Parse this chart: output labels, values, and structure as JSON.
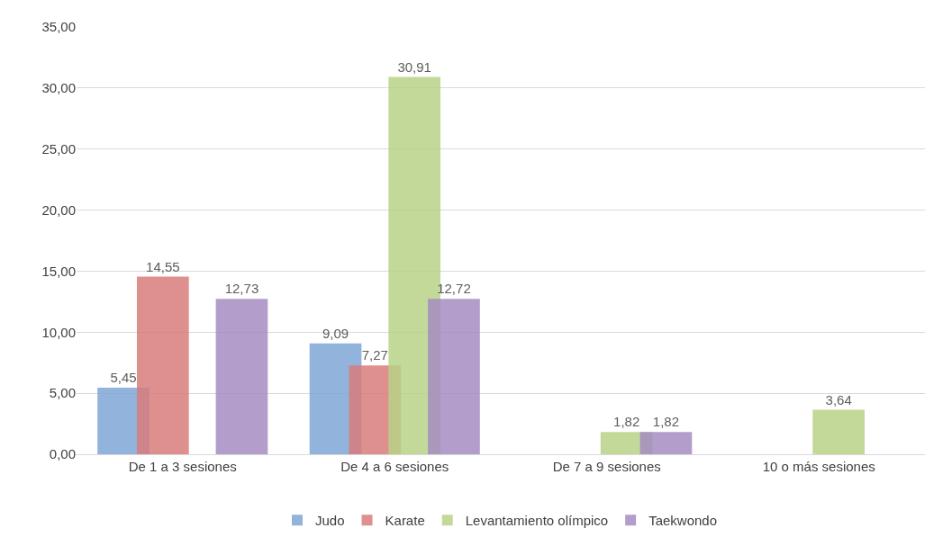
{
  "chart_data": {
    "type": "bar",
    "categories": [
      "De 1 a 3 sesiones",
      "De 4 a 6 sesiones",
      "De 7 a 9 sesiones",
      "10 o más sesiones"
    ],
    "series": [
      {
        "name": "Judo",
        "color": "#7ea6d6",
        "values": [
          5.45,
          9.09,
          null,
          null
        ],
        "value_labels": [
          "5,45",
          "9,09",
          null,
          null
        ]
      },
      {
        "name": "Karate",
        "color": "#d97d7b",
        "values": [
          14.55,
          7.27,
          null,
          null
        ],
        "value_labels": [
          "14,55",
          "7,27",
          null,
          null
        ]
      },
      {
        "name": "Levantamiento olímpico",
        "color": "#b9d388",
        "values": [
          null,
          30.91,
          1.82,
          3.64
        ],
        "value_labels": [
          null,
          "30,91",
          "1,82",
          "3,64"
        ]
      },
      {
        "name": "Taekwondo",
        "color": "#a58cc2",
        "values": [
          12.73,
          12.72,
          1.82,
          null
        ],
        "value_labels": [
          "12,73",
          "12,72",
          "1,82",
          null
        ]
      }
    ],
    "ylim": [
      0,
      35
    ],
    "yticks": [
      {
        "value": 0,
        "label": "0,00"
      },
      {
        "value": 5,
        "label": "5,00"
      },
      {
        "value": 10,
        "label": "10,00"
      },
      {
        "value": 15,
        "label": "15,00"
      },
      {
        "value": 20,
        "label": "20,00"
      },
      {
        "value": 25,
        "label": "25,00"
      },
      {
        "value": 30,
        "label": "30,00"
      },
      {
        "value": 35,
        "label": "35,00"
      }
    ],
    "grid": "y",
    "legend": "bottom"
  }
}
